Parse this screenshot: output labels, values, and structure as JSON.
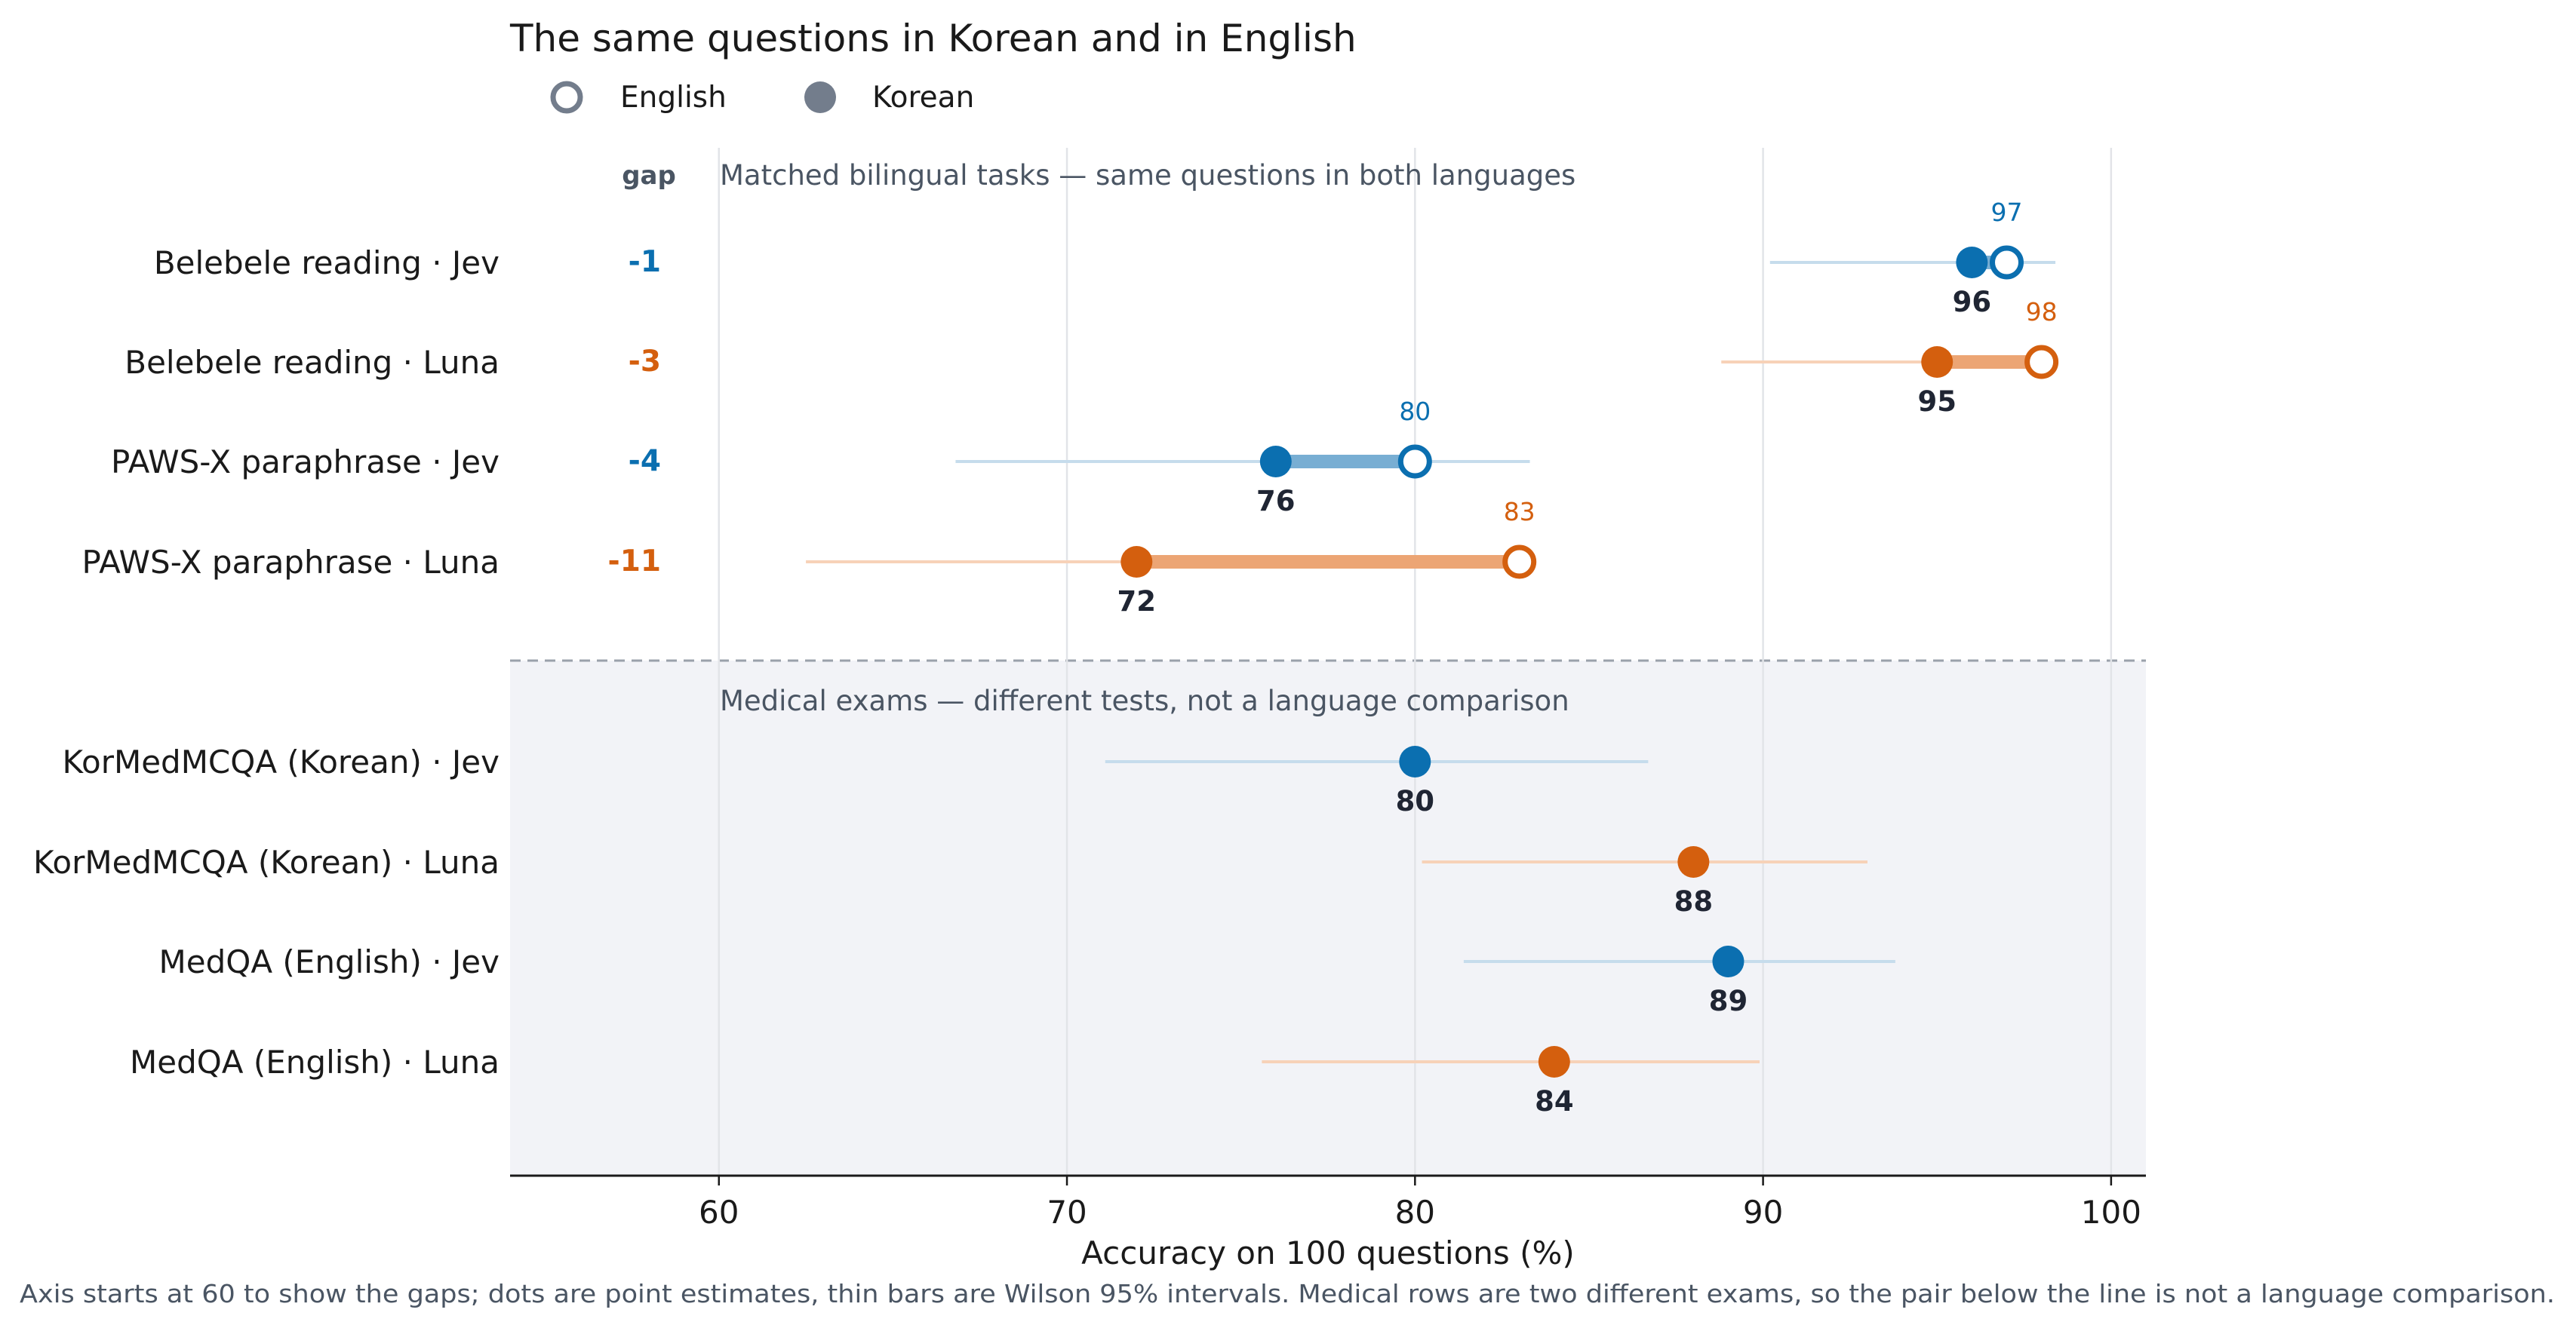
{
  "chart_data": {
    "type": "dumbbell",
    "title": "The same questions in Korean and in English",
    "legend": {
      "placement": "top-left",
      "items": [
        {
          "label": "English",
          "marker": "open-circle"
        },
        {
          "label": "Korean",
          "marker": "filled-circle"
        }
      ]
    },
    "xlabel": "Accuracy on 100 questions (%)",
    "xlim": [
      54,
      101
    ],
    "xticks": [
      60,
      70,
      80,
      90,
      100
    ],
    "xtick_labels": [
      "60",
      "70",
      "80",
      "90",
      "100"
    ],
    "grid": "vertical",
    "gap_header": "gap",
    "section_matched": "Matched bilingual tasks — same questions in both languages",
    "section_medical": "Medical exams — different tests, not a language comparison",
    "colors": {
      "Jev": "#0b6fb0",
      "Luna": "#d45f0e",
      "legend": "#737d8c",
      "shade": "#f2f3f7"
    },
    "rows": [
      {
        "label": "Belebele reading · Jev",
        "model": "Jev",
        "section": "matched",
        "korean": 96,
        "english": 97,
        "korean_label": "96",
        "english_label": "97",
        "gap": "-1",
        "ci": [
          90.2,
          98.4
        ]
      },
      {
        "label": "Belebele reading · Luna",
        "model": "Luna",
        "section": "matched",
        "korean": 95,
        "english": 98,
        "korean_label": "95",
        "english_label": "98",
        "gap": "-3",
        "ci": [
          88.8,
          97.9
        ]
      },
      {
        "label": "PAWS-X paraphrase · Jev",
        "model": "Jev",
        "section": "matched",
        "korean": 76,
        "english": 80,
        "korean_label": "76",
        "english_label": "80",
        "gap": "-4",
        "ci": [
          66.8,
          83.3
        ]
      },
      {
        "label": "PAWS-X paraphrase · Luna",
        "model": "Luna",
        "section": "matched",
        "korean": 72,
        "english": 83,
        "korean_label": "72",
        "english_label": "83",
        "gap": "-11",
        "ci": [
          62.5,
          79.9
        ]
      },
      {
        "label": "KorMedMCQA (Korean) · Jev",
        "model": "Jev",
        "section": "medical",
        "korean": 80,
        "korean_label": "80",
        "ci": [
          71.1,
          86.7
        ]
      },
      {
        "label": "KorMedMCQA (Korean) · Luna",
        "model": "Luna",
        "section": "medical",
        "korean": 88,
        "korean_label": "88",
        "ci": [
          80.2,
          93.0
        ]
      },
      {
        "label": "MedQA (English) · Jev",
        "model": "Jev",
        "section": "medical",
        "korean": 89,
        "korean_label": "89",
        "ci": [
          81.4,
          93.8
        ]
      },
      {
        "label": "MedQA (English) · Luna",
        "model": "Luna",
        "section": "medical",
        "korean": 84,
        "korean_label": "84",
        "ci": [
          75.6,
          89.9
        ]
      }
    ],
    "footnote": "Axis starts at 60 to show the gaps; dots are point estimates, thin bars are Wilson 95% intervals.  Medical rows are two different exams, so the pair below the line is not a language comparison."
  }
}
